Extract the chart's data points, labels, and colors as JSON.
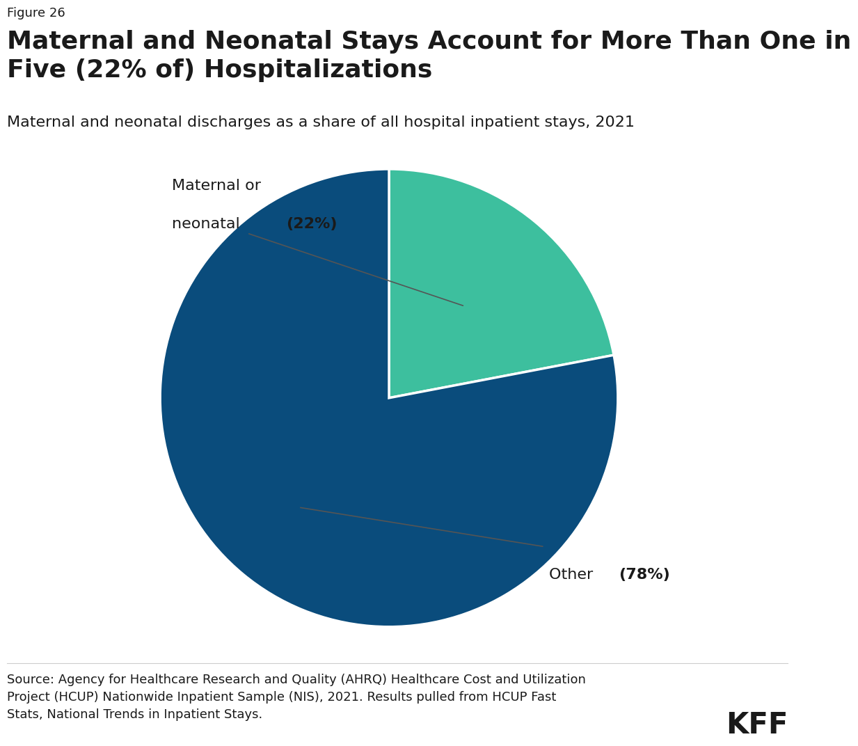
{
  "figure_label": "Figure 26",
  "title": "Maternal and Neonatal Stays Account for More Than One in\nFive (22% of) Hospitalizations",
  "subtitle": "Maternal and neonatal discharges as a share of all hospital inpatient stays, 2021",
  "slices": [
    22,
    78
  ],
  "slice_colors": [
    "#3dbf9e",
    "#0a4c7c"
  ],
  "startangle": 90,
  "source_text": "Source: Agency for Healthcare Research and Quality (AHRQ) Healthcare Cost and Utilization\nProject (HCUP) Nationwide Inpatient Sample (NIS), 2021. Results pulled from HCUP Fast\nStats, National Trends in Inpatient Stays.",
  "kff_text": "KFF",
  "background_color": "#ffffff",
  "text_color": "#1a1a1a",
  "figure_label_fontsize": 13,
  "title_fontsize": 26,
  "subtitle_fontsize": 16,
  "source_fontsize": 13,
  "kff_fontsize": 30,
  "label_fontsize": 16
}
